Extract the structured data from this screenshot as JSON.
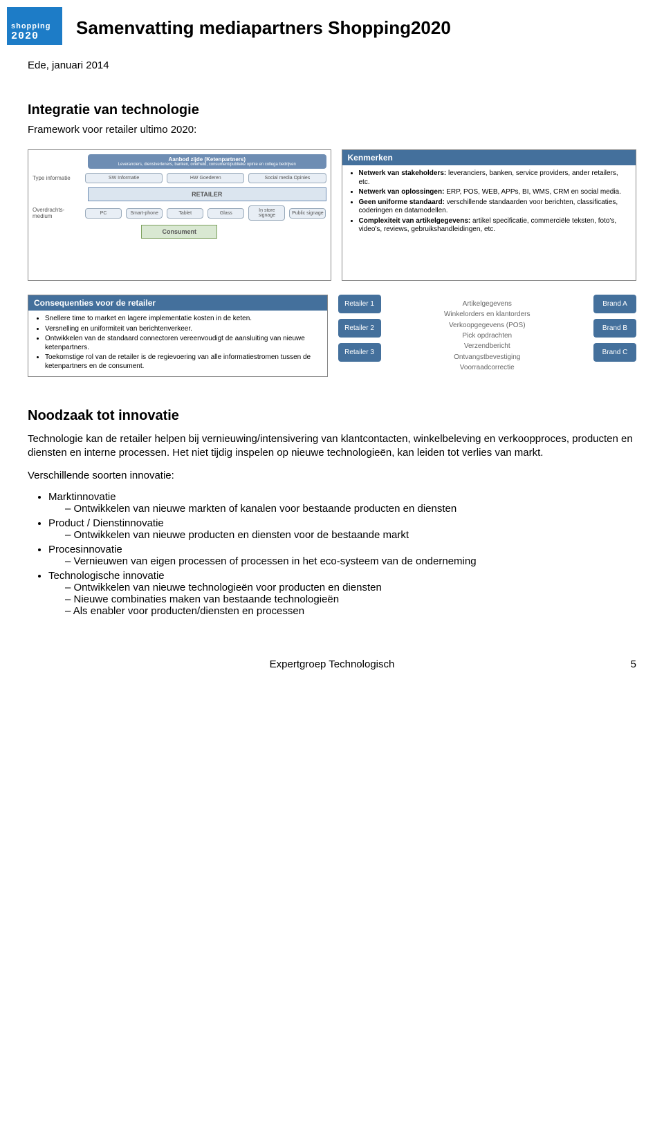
{
  "logo": {
    "line1": "shopping",
    "line2": "2020"
  },
  "title": "Samenvatting mediapartners Shopping2020",
  "subtitle": "Ede, januari 2014",
  "section1": {
    "heading": "Integratie van technologie",
    "sub": "Framework voor retailer ultimo 2020:"
  },
  "diagram1": {
    "top": "Aanbod zijde (Ketenpartners)",
    "top_sub": "Leveranciers, dienstverleners, banken, overheid, consument/publieke opinie en collega bedrijven",
    "label_type": "Type informatie",
    "type_boxes": [
      "SW Informatie",
      "HW Goederen",
      "Social media Opinies"
    ],
    "retailer": "RETAILER",
    "label_overdracht": "Overdrachts-medium",
    "medium_boxes": [
      "PC",
      "Smart-phone",
      "Tablet",
      "Glass",
      "In store signage",
      "Public signage"
    ],
    "consument": "Consument"
  },
  "kenmerken": {
    "header": "Kenmerken",
    "items": [
      {
        "b": "Netwerk van stakeholders:",
        "t": " leveranciers, banken, service providers, ander retailers, etc."
      },
      {
        "b": "Netwerk van oplossingen:",
        "t": " ERP, POS, WEB, APPs, BI, WMS, CRM en social media."
      },
      {
        "b": "Geen uniforme standaard:",
        "t": " verschillende standaarden voor berichten, classificaties, coderingen en datamodellen."
      },
      {
        "b": "Complexiteit van artikelgegevens:",
        "t": " artikel specificatie, commerciële teksten, foto's, video's, reviews, gebruikshandleidingen, etc."
      }
    ]
  },
  "consequenties": {
    "header": "Consequenties voor de retailer",
    "items": [
      "Snellere time to market en lagere implementatie kosten in de keten.",
      "Versnelling en uniformiteit van berichtenverkeer.",
      "Ontwikkelen van de standaard connectoren vereenvoudigt de aansluiting van nieuwe ketenpartners.",
      "Toekomstige rol van de retailer is de regievoering van alle informatiestromen tussen de ketenpartners en de consument."
    ]
  },
  "diagram2": {
    "retailers": [
      "Retailer 1",
      "Retailer 2",
      "Retailer 3"
    ],
    "brands": [
      "Brand A",
      "Brand B",
      "Brand C"
    ],
    "middle": [
      "Artikelgegevens",
      "Winkelorders en klantorders",
      "Verkoopgegevens (POS)",
      "Pick opdrachten",
      "Verzendbericht",
      "Ontvangstbevestiging",
      "Voorraadcorrectie"
    ]
  },
  "section2": {
    "heading": "Noodzaak tot innovatie",
    "para": "Technologie kan de retailer helpen bij vernieuwing/intensivering van klantcontacten, winkelbeleving en verkoopproces, producten en diensten en interne processen. Het niet tijdig inspelen op nieuwe technologieën, kan leiden tot verlies van markt.",
    "para2": "Verschillende soorten innovatie:",
    "bullets": [
      {
        "head": "Marktinnovatie",
        "subs": [
          "Ontwikkelen van nieuwe markten of kanalen voor bestaande producten en diensten"
        ]
      },
      {
        "head": "Product / Dienstinnovatie",
        "subs": [
          "Ontwikkelen van nieuwe producten en diensten voor de bestaande markt"
        ]
      },
      {
        "head": "Procesinnovatie",
        "subs": [
          "Vernieuwen van eigen processen of processen in het eco-systeem van de onderneming"
        ]
      },
      {
        "head": "Technologische innovatie",
        "subs": [
          "Ontwikkelen van nieuwe technologieën voor producten en diensten",
          "Nieuwe combinaties maken van bestaande technologieën",
          "Als enabler voor producten/diensten en processen"
        ]
      }
    ]
  },
  "footer": {
    "center": "Expertgroep Technologisch",
    "page": "5"
  },
  "colors": {
    "header_blue": "#44709c",
    "logo_blue": "#1d7cc7",
    "node_blue": "#44709c"
  }
}
